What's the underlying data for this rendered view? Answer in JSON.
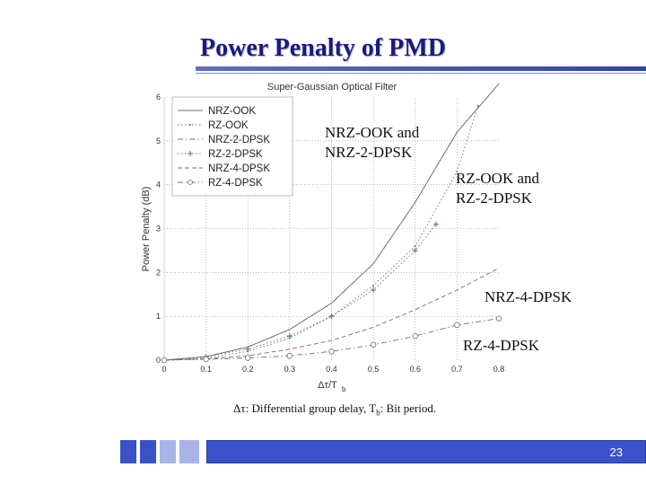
{
  "slide": {
    "title": "Power Penalty of PMD",
    "caption": {
      "part1": "Δτ: Differential group delay, T",
      "sub": "b",
      "part2": ": Bit period."
    },
    "page_number": "23"
  },
  "annotations": [
    {
      "id": "nrz-ook-nrz2",
      "lines": [
        "NRZ-OOK and",
        "NRZ-2-DPSK"
      ]
    },
    {
      "id": "rz-ook-rz2",
      "lines": [
        "RZ-OOK and",
        "RZ-2-DPSK"
      ]
    },
    {
      "id": "nrz4",
      "lines": [
        "NRZ-4-DPSK"
      ]
    },
    {
      "id": "rz4",
      "lines": [
        "RZ-4-DPSK"
      ]
    }
  ],
  "chart_data": {
    "type": "line",
    "title": "Super-Gaussian Optical Filter",
    "xlabel_main": "Δτ/T",
    "xlabel_sub": "b",
    "ylabel": "Power Penalty (dB)",
    "xlim": [
      0,
      0.8
    ],
    "ylim": [
      0,
      6
    ],
    "xticks": [
      "0",
      "0.1",
      "0.2",
      "0.3",
      "0.4",
      "0.5",
      "0.6",
      "0.7",
      "0.8"
    ],
    "yticks": [
      "0",
      "1",
      "2",
      "3",
      "4",
      "5",
      "6"
    ],
    "grid": true,
    "legend_position": "top-left",
    "series": [
      {
        "name": "NRZ-OOK",
        "style": "solid",
        "marker": "none",
        "x": [
          0,
          0.1,
          0.2,
          0.3,
          0.4,
          0.5,
          0.6,
          0.7,
          0.8
        ],
        "y": [
          0,
          0.08,
          0.3,
          0.7,
          1.3,
          2.2,
          3.6,
          5.2,
          6.3
        ]
      },
      {
        "name": "RZ-OOK",
        "style": "dotted",
        "marker": "dot",
        "x": [
          0,
          0.1,
          0.2,
          0.3,
          0.4,
          0.5,
          0.6,
          0.7,
          0.75
        ],
        "y": [
          0,
          0.05,
          0.2,
          0.5,
          1.0,
          1.7,
          2.6,
          4.3,
          5.8
        ]
      },
      {
        "name": "NRZ-2-DPSK",
        "style": "dashdot",
        "marker": "none",
        "x": [
          0,
          0.1,
          0.2,
          0.3,
          0.4,
          0.5,
          0.6,
          0.7,
          0.8
        ],
        "y": [
          0,
          0.08,
          0.3,
          0.7,
          1.3,
          2.2,
          3.6,
          5.2,
          6.3
        ]
      },
      {
        "name": "RZ-2-DPSK",
        "style": "dotted",
        "marker": "plus",
        "x": [
          0,
          0.1,
          0.2,
          0.3,
          0.4,
          0.5,
          0.6,
          0.65
        ],
        "y": [
          0,
          0.08,
          0.25,
          0.55,
          1.0,
          1.6,
          2.5,
          3.1
        ]
      },
      {
        "name": "NRZ-4-DPSK",
        "style": "dashed",
        "marker": "none",
        "x": [
          0,
          0.1,
          0.2,
          0.3,
          0.4,
          0.5,
          0.6,
          0.7,
          0.8
        ],
        "y": [
          0,
          0.03,
          0.1,
          0.25,
          0.45,
          0.75,
          1.15,
          1.6,
          2.1
        ]
      },
      {
        "name": "RZ-4-DPSK",
        "style": "dashdot",
        "marker": "circle",
        "x": [
          0,
          0.1,
          0.2,
          0.3,
          0.4,
          0.5,
          0.6,
          0.7,
          0.8
        ],
        "y": [
          0,
          0.02,
          0.05,
          0.1,
          0.2,
          0.35,
          0.55,
          0.8,
          0.95
        ]
      }
    ]
  },
  "colors": {
    "title": "#1a1a80",
    "accent": "#3a52c8",
    "curve": "#6f6f6f",
    "grid": "#8a8a8a",
    "marker_plus": "#2a8a3a"
  }
}
